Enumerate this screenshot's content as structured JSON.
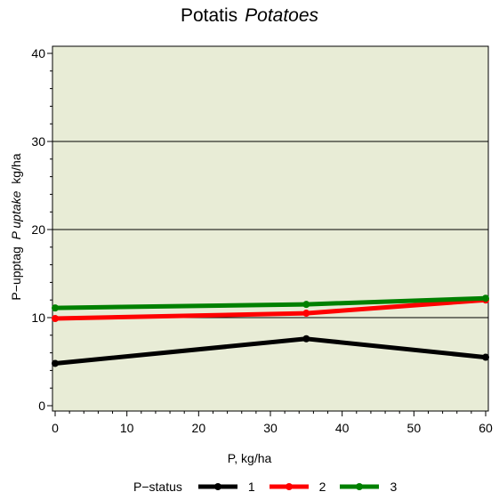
{
  "chart_data": {
    "type": "line",
    "title": "Potatis",
    "title_en": "Potatoes",
    "xlabel": "P, kg/ha",
    "ylabel_sv": "P−upptag",
    "ylabel_en": "P uptake",
    "ylabel_unit": "kg/ha",
    "xlim": [
      0,
      60
    ],
    "ylim": [
      0,
      40
    ],
    "x_ticks": [
      0,
      10,
      20,
      30,
      40,
      50,
      60
    ],
    "y_ticks": [
      0,
      10,
      20,
      30,
      40
    ],
    "grid_y": [
      10,
      20,
      30
    ],
    "background": "#e8ecd6",
    "legend_title": "P−status",
    "legend_position": "bottom",
    "series": [
      {
        "name": "1",
        "color": "#000000",
        "x": [
          0,
          35,
          60
        ],
        "y": [
          4.8,
          7.6,
          5.5
        ]
      },
      {
        "name": "2",
        "color": "#ff0000",
        "x": [
          0,
          35,
          60
        ],
        "y": [
          9.9,
          10.5,
          12.0
        ]
      },
      {
        "name": "3",
        "color": "#008000",
        "x": [
          0,
          35,
          60
        ],
        "y": [
          11.1,
          11.5,
          12.2
        ]
      }
    ]
  }
}
